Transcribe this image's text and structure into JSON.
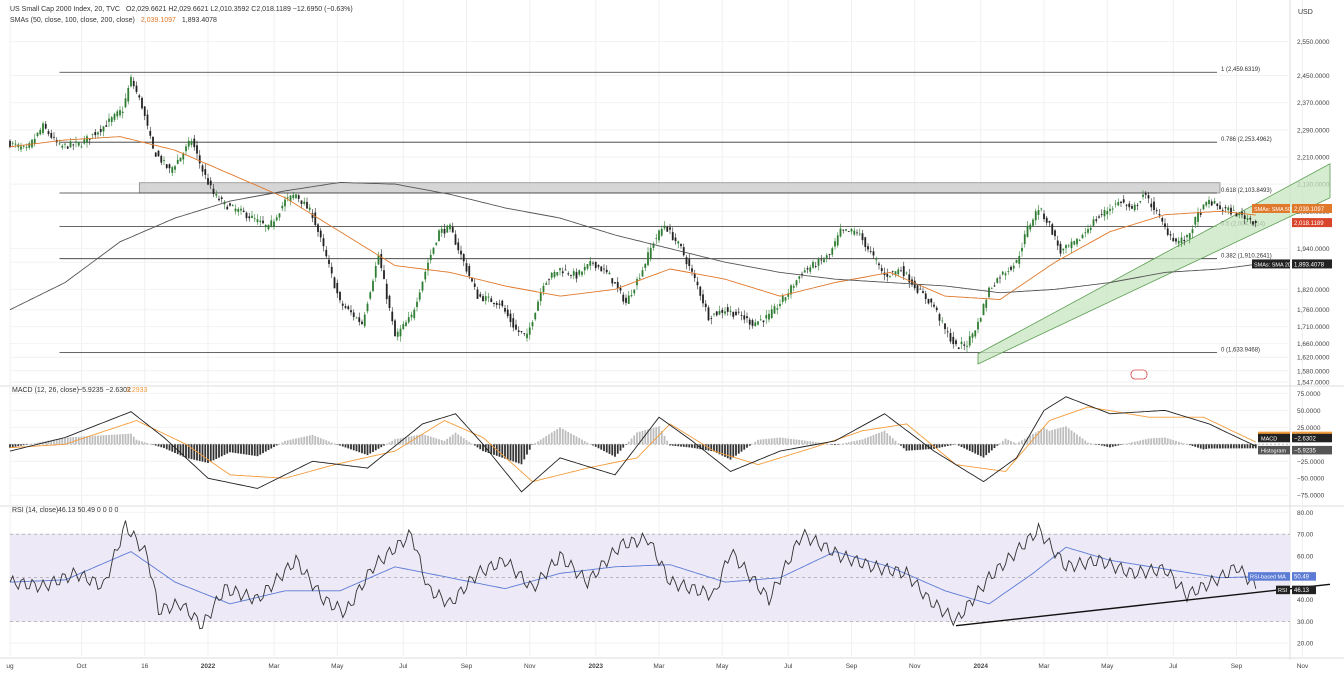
{
  "header": {
    "title": "US Small Cap 2000 Index, 20, TVC",
    "ohlc": "O2,029.6621 H2,029.6621 L2,010.3592 C2,018.1189 −12.6950 (−0.63%)",
    "sma_label": "SMAs (50, close, 100, close, 200, close)",
    "sma50_value": "2,039.1097",
    "sma200_value": "1,893.4078",
    "currency": "USD"
  },
  "colors": {
    "up": "#2e7d32",
    "down": "#222222",
    "sma50": "#e0792c",
    "sma200": "#555555",
    "zone_fill": "#cfcfcf",
    "channel_fill": "#c8e6c0",
    "channel_stroke": "#5a9c50",
    "macd_line": "#222222",
    "signal_line": "#f39c3b",
    "hist_pos": "#bdbdbd",
    "hist_neg": "#333333",
    "rsi_line": "#333333",
    "rsi_ma": "#5b7bd5",
    "rsi_band": "#ede9f7",
    "label_sma50_bg": "#e0792c",
    "label_price_bg": "#d9442c",
    "label_sma200_bg": "#222222",
    "label_macd_bg": "#222222",
    "label_signal_bg": "#f39c3b",
    "label_hist_bg": "#555555",
    "label_rsi_ma_bg": "#5b7bd5",
    "label_rsi_bg": "#222222"
  },
  "chart_data": [
    {
      "type": "candlestick",
      "name": "main",
      "ylim": [
        1547,
        2590
      ],
      "y_ticks": [
        2550,
        2450,
        2370,
        2290,
        2210,
        2130,
        2050,
        1940,
        1900,
        1820,
        1760,
        1710,
        1660,
        1620,
        1580,
        1547
      ],
      "y_tick_labels": [
        "2,550.0000",
        "2,450.0000",
        "2,370.0000",
        "2,290.0000",
        "2,210.0000",
        "2,130.0000",
        "2,050.0000",
        "1,940.0000",
        "1,900.0000",
        "1,820.0000",
        "1,760.0000",
        "1,710.0000",
        "1,660.0000",
        "1,620.0000",
        "1,580.0000",
        "1,547.0000"
      ],
      "x_labels": [
        "ug",
        "Oct",
        "16",
        "2022",
        "Mar",
        "May",
        "Jul",
        "Sep",
        "Nov",
        "2023",
        "Mar",
        "May",
        "Jul",
        "Sep",
        "Nov",
        "2024",
        "Mar",
        "May",
        "Jul",
        "Sep",
        "Nov"
      ],
      "fib_levels": [
        {
          "label": "1 (2,459.6319)",
          "value": 2459.6319
        },
        {
          "label": "0.786 (2,253.4962)",
          "value": 2253.4962
        },
        {
          "label": "0.618 (2,103.8493)",
          "value": 2103.8493
        },
        {
          "label": "0.5 (2,004.7214)",
          "value": 2004.7214
        },
        {
          "label": "0.382 (1,910.2641)",
          "value": 1910.2641
        },
        {
          "label": "0 (1,633.9468)",
          "value": 1633.9468
        }
      ],
      "zone": {
        "low": 2103.8493,
        "high": 2134
      },
      "price_anchors": [
        [
          0,
          2250
        ],
        [
          6,
          2230
        ],
        [
          12,
          2300
        ],
        [
          18,
          2240
        ],
        [
          26,
          2250
        ],
        [
          34,
          2300
        ],
        [
          41,
          2350
        ],
        [
          44,
          2440
        ],
        [
          48,
          2360
        ],
        [
          52,
          2230
        ],
        [
          58,
          2170
        ],
        [
          62,
          2210
        ],
        [
          66,
          2260
        ],
        [
          70,
          2170
        ],
        [
          74,
          2100
        ],
        [
          78,
          2070
        ],
        [
          86,
          2040
        ],
        [
          94,
          2000
        ],
        [
          100,
          2080
        ],
        [
          104,
          2100
        ],
        [
          110,
          2040
        ],
        [
          114,
          1940
        ],
        [
          120,
          1780
        ],
        [
          128,
          1720
        ],
        [
          134,
          1920
        ],
        [
          140,
          1680
        ],
        [
          146,
          1740
        ],
        [
          152,
          1900
        ],
        [
          156,
          1990
        ],
        [
          160,
          2000
        ],
        [
          164,
          1920
        ],
        [
          170,
          1800
        ],
        [
          178,
          1780
        ],
        [
          184,
          1700
        ],
        [
          188,
          1680
        ],
        [
          194,
          1840
        ],
        [
          200,
          1880
        ],
        [
          206,
          1860
        ],
        [
          212,
          1900
        ],
        [
          218,
          1860
        ],
        [
          224,
          1780
        ],
        [
          230,
          1880
        ],
        [
          234,
          1960
        ],
        [
          238,
          2010
        ],
        [
          244,
          1940
        ],
        [
          250,
          1830
        ],
        [
          254,
          1740
        ],
        [
          260,
          1760
        ],
        [
          266,
          1740
        ],
        [
          270,
          1720
        ],
        [
          276,
          1740
        ],
        [
          282,
          1800
        ],
        [
          288,
          1870
        ],
        [
          294,
          1900
        ],
        [
          298,
          1920
        ],
        [
          302,
          1990
        ],
        [
          308,
          1990
        ],
        [
          312,
          1940
        ],
        [
          318,
          1860
        ],
        [
          324,
          1880
        ],
        [
          330,
          1820
        ],
        [
          336,
          1770
        ],
        [
          340,
          1700
        ],
        [
          344,
          1650
        ],
        [
          348,
          1660
        ],
        [
          352,
          1720
        ],
        [
          356,
          1820
        ],
        [
          360,
          1860
        ],
        [
          366,
          1900
        ],
        [
          370,
          2000
        ],
        [
          374,
          2060
        ],
        [
          378,
          2010
        ],
        [
          382,
          1930
        ],
        [
          388,
          1960
        ],
        [
          394,
          2020
        ],
        [
          400,
          2060
        ],
        [
          404,
          2080
        ],
        [
          408,
          2050
        ],
        [
          412,
          2100
        ],
        [
          416,
          2060
        ],
        [
          420,
          2000
        ],
        [
          424,
          1960
        ],
        [
          428,
          1970
        ],
        [
          432,
          2040
        ],
        [
          436,
          2080
        ],
        [
          440,
          2060
        ],
        [
          444,
          2050
        ],
        [
          450,
          2030
        ],
        [
          453,
          2018.1189
        ]
      ],
      "sma50_anchors": [
        [
          0,
          2240
        ],
        [
          20,
          2260
        ],
        [
          40,
          2270
        ],
        [
          60,
          2230
        ],
        [
          80,
          2160
        ],
        [
          100,
          2090
        ],
        [
          120,
          1990
        ],
        [
          140,
          1890
        ],
        [
          160,
          1870
        ],
        [
          180,
          1830
        ],
        [
          200,
          1800
        ],
        [
          220,
          1820
        ],
        [
          240,
          1880
        ],
        [
          260,
          1850
        ],
        [
          280,
          1800
        ],
        [
          300,
          1840
        ],
        [
          320,
          1870
        ],
        [
          340,
          1800
        ],
        [
          360,
          1790
        ],
        [
          380,
          1900
        ],
        [
          400,
          1990
        ],
        [
          420,
          2040
        ],
        [
          440,
          2050
        ],
        [
          453,
          2039.1097
        ]
      ],
      "sma200_anchors": [
        [
          0,
          1760
        ],
        [
          20,
          1840
        ],
        [
          40,
          1960
        ],
        [
          60,
          2030
        ],
        [
          80,
          2080
        ],
        [
          100,
          2110
        ],
        [
          120,
          2135
        ],
        [
          140,
          2130
        ],
        [
          160,
          2100
        ],
        [
          180,
          2060
        ],
        [
          200,
          2030
        ],
        [
          220,
          1980
        ],
        [
          240,
          1940
        ],
        [
          260,
          1900
        ],
        [
          280,
          1870
        ],
        [
          300,
          1850
        ],
        [
          320,
          1840
        ],
        [
          340,
          1830
        ],
        [
          360,
          1810
        ],
        [
          380,
          1820
        ],
        [
          400,
          1840
        ],
        [
          420,
          1870
        ],
        [
          440,
          1880
        ],
        [
          453,
          1893.4078
        ]
      ],
      "channel": {
        "start_index": 352,
        "start_low": 1600,
        "start_high": 1630,
        "end_index": 480,
        "end_low": 2090,
        "end_high": 2190
      },
      "price_label": "2,018.1189",
      "sma50_label": "SMAs: SMA 50",
      "sma50_label_value": "2,039.1097",
      "sma200_label": "SMAs: SMA 200",
      "sma200_label_value": "1,893.4078"
    },
    {
      "type": "macd",
      "name": "macd",
      "title": "MACD (12, 26, close)",
      "values_text": "−5.9235 −2.6302",
      "signal_text": "3.2933",
      "ylim": [
        -85,
        80
      ],
      "y_ticks": [
        75,
        50,
        25,
        -25,
        -50,
        -75
      ],
      "y_tick_labels": [
        "75.0000",
        "50.0000",
        "25.0000",
        "−25.0000",
        "−50.0000",
        "−75.0000"
      ],
      "macd_anchors": [
        [
          0,
          -10
        ],
        [
          20,
          10
        ],
        [
          44,
          48
        ],
        [
          56,
          10
        ],
        [
          72,
          -50
        ],
        [
          90,
          -65
        ],
        [
          110,
          -25
        ],
        [
          130,
          -35
        ],
        [
          150,
          30
        ],
        [
          162,
          45
        ],
        [
          172,
          0
        ],
        [
          186,
          -70
        ],
        [
          200,
          -20
        ],
        [
          220,
          -45
        ],
        [
          236,
          40
        ],
        [
          248,
          5
        ],
        [
          262,
          -40
        ],
        [
          280,
          -10
        ],
        [
          300,
          5
        ],
        [
          318,
          45
        ],
        [
          336,
          -10
        ],
        [
          354,
          -55
        ],
        [
          366,
          -20
        ],
        [
          376,
          50
        ],
        [
          384,
          70
        ],
        [
          400,
          45
        ],
        [
          420,
          50
        ],
        [
          436,
          30
        ],
        [
          453,
          -2.6302
        ]
      ],
      "signal_anchors": [
        [
          0,
          -5
        ],
        [
          20,
          0
        ],
        [
          46,
          35
        ],
        [
          64,
          0
        ],
        [
          80,
          -45
        ],
        [
          100,
          -50
        ],
        [
          118,
          -30
        ],
        [
          140,
          -10
        ],
        [
          158,
          35
        ],
        [
          172,
          10
        ],
        [
          190,
          -55
        ],
        [
          210,
          -35
        ],
        [
          228,
          -20
        ],
        [
          240,
          30
        ],
        [
          256,
          -10
        ],
        [
          272,
          -30
        ],
        [
          292,
          -5
        ],
        [
          310,
          20
        ],
        [
          326,
          30
        ],
        [
          344,
          -30
        ],
        [
          362,
          -40
        ],
        [
          378,
          35
        ],
        [
          392,
          55
        ],
        [
          414,
          40
        ],
        [
          434,
          40
        ],
        [
          453,
          3.2933
        ]
      ],
      "signal_label": "Signal",
      "signal_label_value": "3.2933",
      "macd_label": "MACD",
      "macd_label_value": "−2.6302",
      "hist_label": "Histogram",
      "hist_label_value": "−5.9235"
    },
    {
      "type": "rsi",
      "name": "rsi",
      "title": "RSI (14, close)",
      "values_text": "46.13 50.49 0 0 0 0",
      "ylim": [
        15,
        82
      ],
      "y_ticks": [
        80,
        70,
        60,
        50,
        40,
        30,
        20
      ],
      "y_tick_labels": [
        "80.00",
        "70.00",
        "60.00",
        "50.00",
        "40.00",
        "30.00",
        "20.00"
      ],
      "band": [
        30,
        70
      ],
      "midline": 50,
      "rsi_anchors": [
        [
          0,
          48
        ],
        [
          12,
          46
        ],
        [
          24,
          52
        ],
        [
          34,
          46
        ],
        [
          42,
          74
        ],
        [
          50,
          60
        ],
        [
          54,
          35
        ],
        [
          62,
          38
        ],
        [
          70,
          28
        ],
        [
          78,
          45
        ],
        [
          90,
          40
        ],
        [
          104,
          58
        ],
        [
          114,
          40
        ],
        [
          122,
          34
        ],
        [
          132,
          55
        ],
        [
          146,
          70
        ],
        [
          152,
          45
        ],
        [
          160,
          38
        ],
        [
          170,
          52
        ],
        [
          180,
          58
        ],
        [
          190,
          45
        ],
        [
          200,
          60
        ],
        [
          210,
          48
        ],
        [
          222,
          65
        ],
        [
          232,
          68
        ],
        [
          240,
          48
        ],
        [
          256,
          42
        ],
        [
          262,
          62
        ],
        [
          276,
          40
        ],
        [
          288,
          70
        ],
        [
          302,
          60
        ],
        [
          314,
          55
        ],
        [
          326,
          52
        ],
        [
          334,
          40
        ],
        [
          344,
          30
        ],
        [
          356,
          50
        ],
        [
          366,
          62
        ],
        [
          374,
          72
        ],
        [
          384,
          55
        ],
        [
          396,
          58
        ],
        [
          408,
          52
        ],
        [
          420,
          54
        ],
        [
          428,
          42
        ],
        [
          440,
          50
        ],
        [
          446,
          55
        ],
        [
          453,
          46.13
        ]
      ],
      "rsi_ma_anchors": [
        [
          0,
          48
        ],
        [
          20,
          49
        ],
        [
          44,
          62
        ],
        [
          60,
          48
        ],
        [
          80,
          38
        ],
        [
          100,
          44
        ],
        [
          120,
          44
        ],
        [
          140,
          55
        ],
        [
          160,
          50
        ],
        [
          180,
          45
        ],
        [
          200,
          52
        ],
        [
          220,
          55
        ],
        [
          240,
          56
        ],
        [
          260,
          48
        ],
        [
          280,
          50
        ],
        [
          300,
          62
        ],
        [
          320,
          55
        ],
        [
          340,
          44
        ],
        [
          356,
          38
        ],
        [
          372,
          52
        ],
        [
          384,
          64
        ],
        [
          400,
          58
        ],
        [
          420,
          54
        ],
        [
          440,
          50
        ],
        [
          453,
          50.49
        ]
      ],
      "trendline": {
        "x1": 344,
        "y1": 28,
        "x2": 480,
        "y2": 47
      },
      "rsi_ma_label": "RSI-based MA",
      "rsi_ma_label_value": "50.49",
      "rsi_label": "RSI",
      "rsi_label_value": "46.13"
    }
  ]
}
